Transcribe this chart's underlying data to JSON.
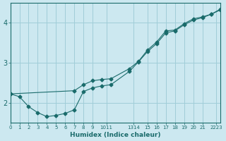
{
  "xlabel": "Humidex (Indice chaleur)",
  "bg_color": "#cce8f0",
  "grid_color": "#a0cdd8",
  "line_color": "#1a6b6b",
  "line1_x": [
    0,
    1,
    2,
    3,
    4,
    5,
    6,
    7,
    8,
    9,
    10,
    11,
    13,
    14,
    15,
    16,
    17,
    18,
    19,
    20,
    21,
    22,
    23
  ],
  "line1_y": [
    2.22,
    2.15,
    1.9,
    1.75,
    1.65,
    1.68,
    1.73,
    1.82,
    2.28,
    2.37,
    2.42,
    2.45,
    2.78,
    3.02,
    3.28,
    3.48,
    3.75,
    3.8,
    3.95,
    4.07,
    4.13,
    4.22,
    4.33
  ],
  "line2_x": [
    0,
    7,
    8,
    9,
    10,
    11,
    13,
    14,
    15,
    16,
    17,
    18,
    19,
    20,
    21,
    22,
    23
  ],
  "line2_y": [
    2.22,
    2.3,
    2.45,
    2.55,
    2.58,
    2.6,
    2.85,
    3.03,
    3.32,
    3.52,
    3.8,
    3.82,
    3.98,
    4.1,
    4.15,
    4.22,
    4.35
  ],
  "xlim": [
    0,
    23
  ],
  "ylim": [
    1.5,
    4.5
  ],
  "yticks": [
    2,
    3,
    4
  ],
  "xtick_positions": [
    0,
    1,
    2,
    3,
    4,
    5,
    6,
    7,
    8,
    9,
    10,
    12,
    14,
    15,
    16,
    17,
    18,
    19,
    20,
    21,
    22
  ],
  "xtick_labels": [
    "0",
    "1",
    "2",
    "3",
    "4",
    "5",
    "6",
    "7",
    "8",
    "9",
    "1011",
    "1314",
    "15",
    "16",
    "17",
    "18",
    "19",
    "20",
    "21",
    "2223",
    ""
  ]
}
